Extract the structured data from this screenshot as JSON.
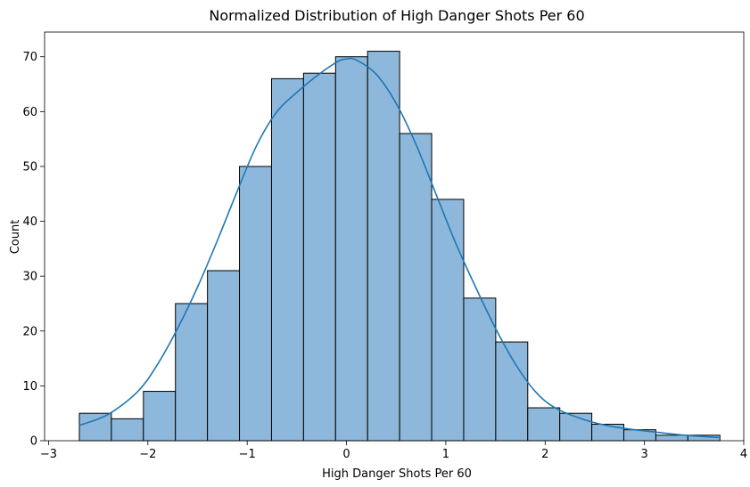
{
  "chart_data": {
    "type": "bar",
    "title": "Normalized Distribution of High Danger Shots Per 60",
    "xlabel": "High Danger Shots Per 60",
    "ylabel": "Count",
    "xlim": [
      -3.04,
      4.0
    ],
    "ylim": [
      0,
      74.5
    ],
    "xticks": [
      -3,
      -2,
      -1,
      0,
      1,
      2,
      3,
      4
    ],
    "xtick_labels": [
      "−3",
      "−2",
      "−1",
      "0",
      "1",
      "2",
      "3",
      "4"
    ],
    "yticks": [
      0,
      10,
      20,
      30,
      40,
      50,
      60,
      70
    ],
    "ytick_labels": [
      "0",
      "10",
      "20",
      "30",
      "40",
      "50",
      "60",
      "70"
    ],
    "bin_start": -2.69,
    "bin_width": 0.3225,
    "counts": [
      5,
      4,
      9,
      25,
      31,
      50,
      66,
      67,
      70,
      71,
      56,
      44,
      26,
      18,
      6,
      5,
      3,
      2,
      1,
      1
    ],
    "kde": {
      "x": [
        -2.69,
        -2.4,
        -2.1,
        -1.9,
        -1.7,
        -1.5,
        -1.3,
        -1.1,
        -0.9,
        -0.7,
        -0.5,
        -0.3,
        -0.1,
        0.0,
        0.1,
        0.3,
        0.5,
        0.7,
        0.9,
        1.1,
        1.3,
        1.5,
        1.7,
        1.9,
        2.1,
        2.4,
        2.7,
        3.0,
        3.4,
        3.75
      ],
      "y": [
        2.8,
        4.8,
        9.0,
        14.0,
        20.5,
        28.0,
        36.5,
        45.5,
        54.0,
        60.0,
        63.5,
        66.5,
        69.0,
        69.6,
        69.4,
        66.8,
        61.5,
        54.0,
        45.0,
        36.0,
        28.0,
        20.5,
        14.0,
        9.0,
        6.0,
        3.8,
        2.5,
        1.8,
        1.0,
        0.6
      ]
    },
    "colors": {
      "bar_fill": "#8db8db",
      "bar_edge": "#000000",
      "kde_line": "#1f77b4"
    },
    "grid": false,
    "legend": "none"
  }
}
